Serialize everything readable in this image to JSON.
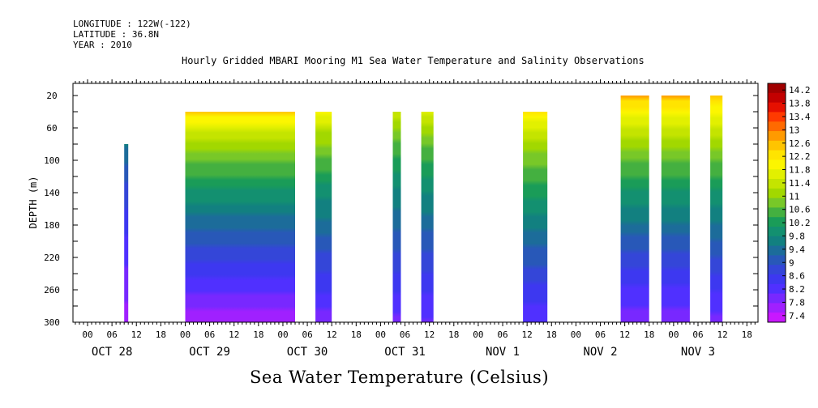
{
  "header": {
    "longitude": "LONGITUDE : 122W(-122)",
    "latitude": "LATITUDE : 36.8N",
    "year": "YEAR : 2010"
  },
  "chart_data": {
    "type": "heatmap",
    "title": "Hourly Gridded MBARI Mooring M1 Sea Water Temperature and Salinity Observations",
    "colorbar_title": "Sea Water Temperature (Celsius)",
    "ylabel": "DEPTH (m)",
    "y_axis": {
      "ticks": [
        20,
        60,
        100,
        140,
        180,
        220,
        260,
        300
      ],
      "range": [
        5,
        300
      ],
      "inverted": true
    },
    "x_axis": {
      "hour_ticks": [
        "00",
        "06",
        "12",
        "18",
        "00",
        "06",
        "12",
        "18",
        "00",
        "06",
        "12",
        "18",
        "00",
        "06",
        "12",
        "18",
        "00",
        "06",
        "12",
        "18",
        "00",
        "06",
        "12",
        "18",
        "00",
        "06",
        "12",
        "18"
      ],
      "day_labels": [
        "OCT 28",
        "OCT 29",
        "OCT 30",
        "OCT 31",
        "NOV  1",
        "NOV  2",
        "NOV  3"
      ]
    },
    "colorbar": {
      "labels": [
        "14.2",
        "13.8",
        "13.4",
        "13",
        "12.6",
        "12.2",
        "11.8",
        "11.4",
        "11",
        "10.6",
        "10.2",
        "9.8",
        "9.4",
        "9",
        "8.6",
        "8.2",
        "7.8",
        "7.4"
      ],
      "colors": [
        "#a00000",
        "#c30000",
        "#e61000",
        "#ff3a00",
        "#ff6a00",
        "#ff9a00",
        "#ffc400",
        "#ffe400",
        "#fcf600",
        "#e2f000",
        "#c4e400",
        "#a2d800",
        "#78c828",
        "#44b040",
        "#1a9c58",
        "#139070",
        "#128080",
        "#1c6c9a",
        "#2858b8",
        "#3446d8",
        "#3d38f0",
        "#5030ff",
        "#7828ff",
        "#a020ff",
        "#c818ff"
      ],
      "range": [
        7.2,
        14.4
      ]
    },
    "segments": [
      {
        "start_hour": 9,
        "end_hour": 10,
        "top_depth": 80,
        "surface_temp": 9.6,
        "bottom_temp": 7.6
      },
      {
        "start_hour": 24,
        "end_hour": 51,
        "top_depth": 40,
        "surface_temp": 12.4,
        "bottom_temp": 7.6
      },
      {
        "start_hour": 56,
        "end_hour": 60,
        "top_depth": 40,
        "surface_temp": 12.0,
        "bottom_temp": 7.9
      },
      {
        "start_hour": 75,
        "end_hour": 77,
        "top_depth": 40,
        "surface_temp": 11.5,
        "bottom_temp": 8.0
      },
      {
        "start_hour": 82,
        "end_hour": 85,
        "top_depth": 40,
        "surface_temp": 11.7,
        "bottom_temp": 8.0
      },
      {
        "start_hour": 107,
        "end_hour": 113,
        "top_depth": 40,
        "surface_temp": 12.2,
        "bottom_temp": 8.1
      },
      {
        "start_hour": 131,
        "end_hour": 138,
        "top_depth": 20,
        "surface_temp": 12.7,
        "bottom_temp": 7.8
      },
      {
        "start_hour": 141,
        "end_hour": 148,
        "top_depth": 20,
        "surface_temp": 12.7,
        "bottom_temp": 7.8
      },
      {
        "start_hour": 153,
        "end_hour": 156,
        "top_depth": 20,
        "surface_temp": 12.6,
        "bottom_temp": 7.9
      }
    ]
  }
}
